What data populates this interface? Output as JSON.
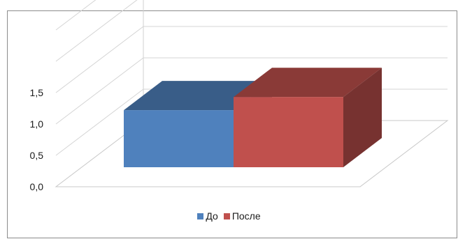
{
  "chart_data": {
    "type": "bar",
    "categories": [
      ""
    ],
    "series": [
      {
        "name": "До",
        "values": [
          1.3
        ],
        "color": "#4F81BD"
      },
      {
        "name": "После",
        "values": [
          1.6
        ],
        "color": "#C0504D"
      }
    ],
    "title": "",
    "xlabel": "",
    "ylabel": "",
    "ylim": [
      0,
      2.5
    ],
    "yticks": [
      "0,0",
      "0,5",
      "1,0",
      "1,5"
    ],
    "grid": true,
    "legend_position": "bottom",
    "style": "3d-column"
  }
}
